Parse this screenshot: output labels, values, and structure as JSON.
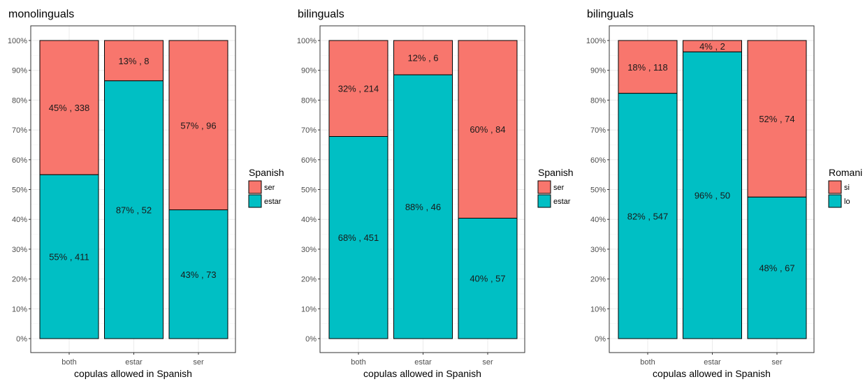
{
  "chart_data": [
    {
      "type": "bar",
      "stacked": true,
      "normalized": true,
      "title": "monolinguals",
      "xlabel": "copulas allowed in Spanish",
      "ylabel": "",
      "categories": [
        "both",
        "estar",
        "ser"
      ],
      "y_ticks": [
        "0%",
        "10%",
        "20%",
        "30%",
        "40%",
        "50%",
        "60%",
        "70%",
        "80%",
        "90%",
        "100%"
      ],
      "ylim": [
        0,
        1
      ],
      "grid": true,
      "legend": {
        "title": "Spanish",
        "position": "right",
        "entries": [
          "ser",
          "estar"
        ]
      },
      "series": [
        {
          "name": "estar",
          "color": "#00BFC4",
          "values": [
            0.55,
            0.865,
            0.432
          ],
          "labels": [
            "55% , 411",
            "87% , 52",
            "43% , 73"
          ]
        },
        {
          "name": "ser",
          "color": "#F8766D",
          "values": [
            0.45,
            0.135,
            0.568
          ],
          "labels": [
            "45% , 338",
            "13% , 8",
            "57% , 96"
          ]
        }
      ]
    },
    {
      "type": "bar",
      "stacked": true,
      "normalized": true,
      "title": "bilinguals",
      "xlabel": "copulas allowed in Spanish",
      "ylabel": "",
      "categories": [
        "both",
        "estar",
        "ser"
      ],
      "y_ticks": [
        "0%",
        "10%",
        "20%",
        "30%",
        "40%",
        "50%",
        "60%",
        "70%",
        "80%",
        "90%",
        "100%"
      ],
      "ylim": [
        0,
        1
      ],
      "grid": true,
      "legend": {
        "title": "Spanish",
        "position": "right",
        "entries": [
          "ser",
          "estar"
        ]
      },
      "series": [
        {
          "name": "estar",
          "color": "#00BFC4",
          "values": [
            0.678,
            0.885,
            0.404
          ],
          "labels": [
            "68% , 451",
            "88% , 46",
            "40% , 57"
          ]
        },
        {
          "name": "ser",
          "color": "#F8766D",
          "values": [
            0.322,
            0.115,
            0.596
          ],
          "labels": [
            "32% , 214",
            "12% , 6",
            "60% , 84"
          ]
        }
      ]
    },
    {
      "type": "bar",
      "stacked": true,
      "normalized": true,
      "title": "bilinguals",
      "xlabel": "copulas allowed in Spanish",
      "ylabel": "",
      "categories": [
        "both",
        "estar",
        "ser"
      ],
      "y_ticks": [
        "0%",
        "10%",
        "20%",
        "30%",
        "40%",
        "50%",
        "60%",
        "70%",
        "80%",
        "90%",
        "100%"
      ],
      "ylim": [
        0,
        1
      ],
      "grid": true,
      "legend": {
        "title": "Romani",
        "position": "right",
        "entries": [
          "si",
          "lo"
        ]
      },
      "series": [
        {
          "name": "lo",
          "color": "#00BFC4",
          "values": [
            0.823,
            0.962,
            0.475
          ],
          "labels": [
            "82% , 547",
            "96% , 50",
            "48% , 67"
          ]
        },
        {
          "name": "si",
          "color": "#F8766D",
          "values": [
            0.177,
            0.038,
            0.525
          ],
          "labels": [
            "18% , 118",
            "4% , 2",
            "52% , 74"
          ]
        }
      ]
    }
  ]
}
